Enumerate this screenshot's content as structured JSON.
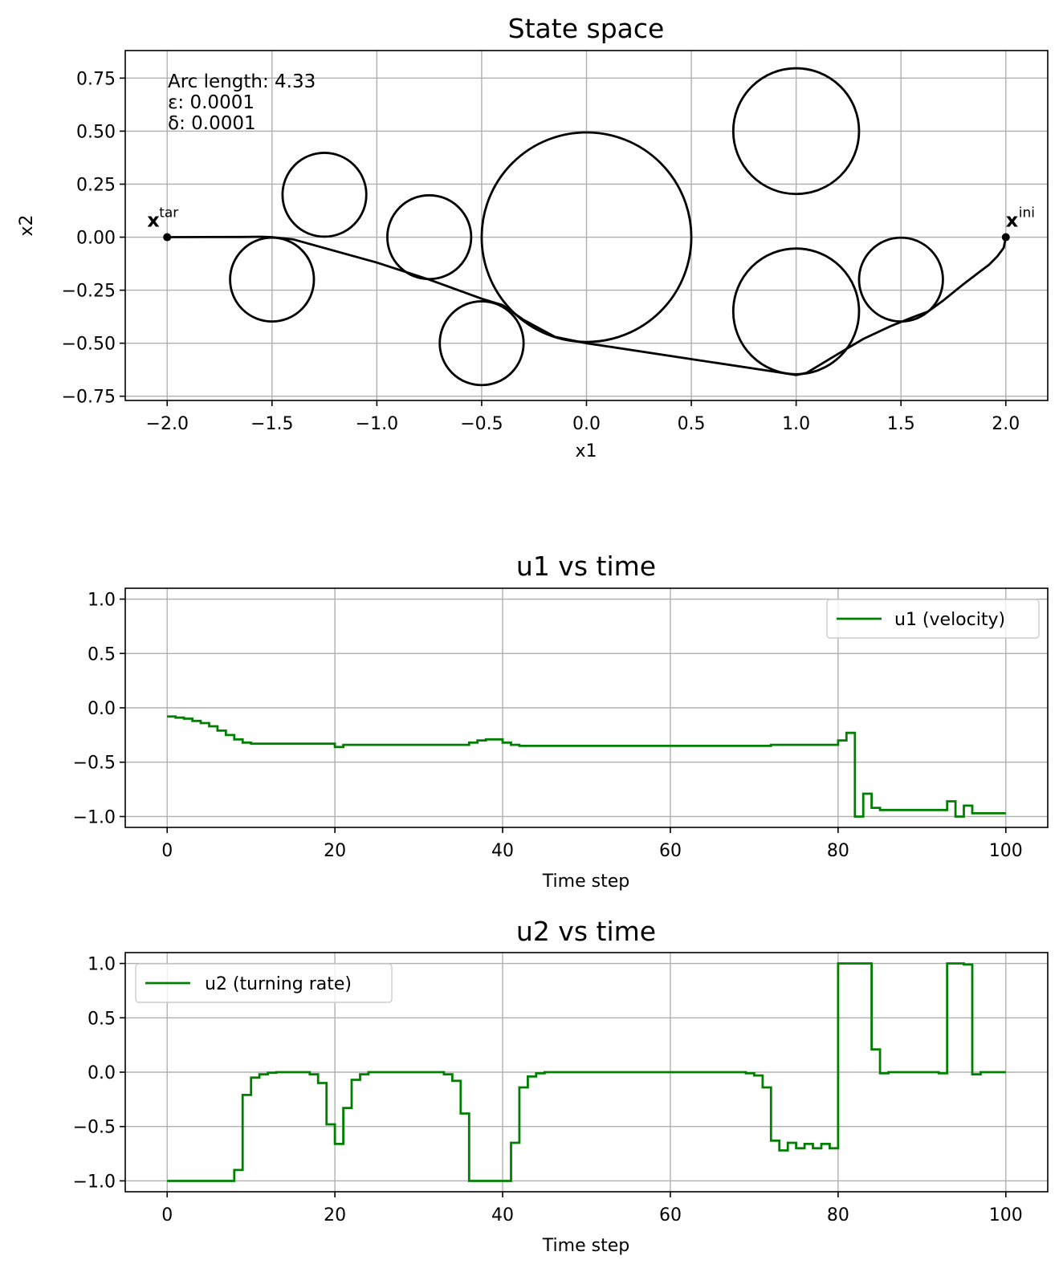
{
  "chart_data": [
    {
      "type": "line",
      "title": "State space",
      "xlabel": "x1",
      "ylabel": "x2",
      "xlim": [
        -2.2,
        2.2
      ],
      "ylim": [
        -0.77,
        0.88
      ],
      "xticks": [
        -2.0,
        -1.5,
        -1.0,
        -0.5,
        0.0,
        0.5,
        1.0,
        1.5,
        2.0
      ],
      "xtick_labels": [
        "−2.0",
        "−1.5",
        "−1.0",
        "−0.5",
        "0.0",
        "0.5",
        "1.0",
        "1.5",
        "2.0"
      ],
      "yticks": [
        0.75,
        0.5,
        0.25,
        0.0,
        -0.25,
        -0.5,
        -0.75
      ],
      "ytick_labels": [
        "0.75",
        "0.50",
        "0.25",
        "0.00",
        "−0.25",
        "−0.50",
        "−0.75"
      ],
      "grid": true,
      "annotations": {
        "arc_length": "Arc length: 4.33",
        "epsilon": "ε: 0.0001",
        "delta": "δ: 0.0001"
      },
      "points": [
        {
          "label_main": "x",
          "label_sup": "tar",
          "x": -2.0,
          "y": 0.0
        },
        {
          "label_main": "x",
          "label_sup": "ini",
          "x": 2.0,
          "y": 0.0
        }
      ],
      "obstacles": [
        {
          "cx": 0.0,
          "cy": 0.0,
          "r": 0.5
        },
        {
          "cx": 1.0,
          "cy": 0.5,
          "r": 0.3
        },
        {
          "cx": 1.0,
          "cy": -0.35,
          "r": 0.3
        },
        {
          "cx": 1.5,
          "cy": -0.2,
          "r": 0.2
        },
        {
          "cx": -0.5,
          "cy": -0.5,
          "r": 0.2
        },
        {
          "cx": -0.75,
          "cy": 0.0,
          "r": 0.2
        },
        {
          "cx": -1.25,
          "cy": 0.2,
          "r": 0.2
        },
        {
          "cx": -1.5,
          "cy": -0.2,
          "r": 0.2
        }
      ],
      "path": [
        [
          2.0,
          0.0
        ],
        [
          1.99,
          -0.05
        ],
        [
          1.96,
          -0.09
        ],
        [
          1.92,
          -0.13
        ],
        [
          1.88,
          -0.16
        ],
        [
          1.8,
          -0.22
        ],
        [
          1.7,
          -0.3
        ],
        [
          1.63,
          -0.35
        ],
        [
          1.55,
          -0.38
        ],
        [
          1.45,
          -0.42
        ],
        [
          1.32,
          -0.48
        ],
        [
          1.2,
          -0.55
        ],
        [
          1.1,
          -0.61
        ],
        [
          1.05,
          -0.64
        ],
        [
          1.0,
          -0.65
        ],
        [
          0.9,
          -0.635
        ],
        [
          0.5,
          -0.575
        ],
        [
          0.1,
          -0.515
        ],
        [
          0.0,
          -0.5
        ],
        [
          -0.15,
          -0.47
        ],
        [
          -0.3,
          -0.39
        ],
        [
          -0.4,
          -0.32
        ],
        [
          -0.5,
          -0.29
        ],
        [
          -0.75,
          -0.2
        ],
        [
          -1.0,
          -0.12
        ],
        [
          -1.4,
          -0.01
        ],
        [
          -1.5,
          0.0
        ],
        [
          -1.55,
          0.002
        ],
        [
          -1.65,
          0.001
        ],
        [
          -2.0,
          0.0
        ]
      ]
    },
    {
      "type": "line",
      "title": "u1 vs time",
      "xlabel": "Time step",
      "ylabel": "",
      "xlim": [
        -5,
        105
      ],
      "ylim": [
        -1.1,
        1.1
      ],
      "xticks": [
        0,
        20,
        40,
        60,
        80,
        100
      ],
      "yticks": [
        1.0,
        0.5,
        0.0,
        -0.5,
        -1.0
      ],
      "ytick_labels": [
        "1.0",
        "0.5",
        "0.0",
        "−0.5",
        "−1.0"
      ],
      "grid": true,
      "legend_position": "top-right",
      "color": "#008000",
      "series": [
        {
          "name": "u1 (velocity)",
          "steps": [
            [
              0,
              -0.08
            ],
            [
              1,
              -0.09
            ],
            [
              2,
              -0.1
            ],
            [
              3,
              -0.12
            ],
            [
              4,
              -0.14
            ],
            [
              5,
              -0.17
            ],
            [
              6,
              -0.21
            ],
            [
              7,
              -0.25
            ],
            [
              8,
              -0.29
            ],
            [
              9,
              -0.32
            ],
            [
              10,
              -0.33
            ],
            [
              20,
              -0.36
            ],
            [
              21,
              -0.34
            ],
            [
              36,
              -0.32
            ],
            [
              37,
              -0.3
            ],
            [
              38,
              -0.29
            ],
            [
              40,
              -0.32
            ],
            [
              41,
              -0.34
            ],
            [
              42,
              -0.35
            ],
            [
              72,
              -0.34
            ],
            [
              80,
              -0.3
            ],
            [
              81,
              -0.23
            ],
            [
              82,
              -1.0
            ],
            [
              83,
              -0.79
            ],
            [
              84,
              -0.92
            ],
            [
              85,
              -0.94
            ],
            [
              93,
              -0.86
            ],
            [
              94,
              -1.0
            ],
            [
              95,
              -0.9
            ],
            [
              96,
              -0.97
            ],
            [
              100,
              -0.97
            ]
          ]
        }
      ]
    },
    {
      "type": "line",
      "title": "u2 vs time",
      "xlabel": "Time step",
      "ylabel": "",
      "xlim": [
        -5,
        105
      ],
      "ylim": [
        -1.1,
        1.1
      ],
      "xticks": [
        0,
        20,
        40,
        60,
        80,
        100
      ],
      "yticks": [
        1.0,
        0.5,
        0.0,
        -0.5,
        -1.0
      ],
      "ytick_labels": [
        "1.0",
        "0.5",
        "0.0",
        "−0.5",
        "−1.0"
      ],
      "grid": true,
      "legend_position": "top-left",
      "color": "#008000",
      "series": [
        {
          "name": "u2 (turning rate)",
          "steps": [
            [
              0,
              -1.0
            ],
            [
              8,
              -0.9
            ],
            [
              9,
              -0.21
            ],
            [
              10,
              -0.05
            ],
            [
              11,
              -0.02
            ],
            [
              12,
              -0.005
            ],
            [
              13,
              0.0
            ],
            [
              17,
              -0.02
            ],
            [
              18,
              -0.1
            ],
            [
              19,
              -0.48
            ],
            [
              20,
              -0.66
            ],
            [
              21,
              -0.33
            ],
            [
              22,
              -0.07
            ],
            [
              23,
              -0.02
            ],
            [
              24,
              0.0
            ],
            [
              33,
              -0.02
            ],
            [
              34,
              -0.08
            ],
            [
              35,
              -0.38
            ],
            [
              36,
              -1.0
            ],
            [
              41,
              -0.65
            ],
            [
              42,
              -0.14
            ],
            [
              43,
              -0.04
            ],
            [
              44,
              -0.01
            ],
            [
              45,
              0.0
            ],
            [
              69,
              -0.01
            ],
            [
              70,
              -0.03
            ],
            [
              71,
              -0.14
            ],
            [
              72,
              -0.63
            ],
            [
              73,
              -0.72
            ],
            [
              74,
              -0.65
            ],
            [
              75,
              -0.7
            ],
            [
              76,
              -0.66
            ],
            [
              77,
              -0.7
            ],
            [
              78,
              -0.66
            ],
            [
              79,
              -0.7
            ],
            [
              80,
              1.0
            ],
            [
              81,
              1.0
            ],
            [
              84,
              0.21
            ],
            [
              85,
              -0.01
            ],
            [
              86,
              0.0
            ],
            [
              92,
              -0.01
            ],
            [
              93,
              1.0
            ],
            [
              95,
              0.99
            ],
            [
              96,
              -0.02
            ],
            [
              97,
              0.0
            ],
            [
              100,
              0.0
            ]
          ]
        }
      ]
    }
  ]
}
